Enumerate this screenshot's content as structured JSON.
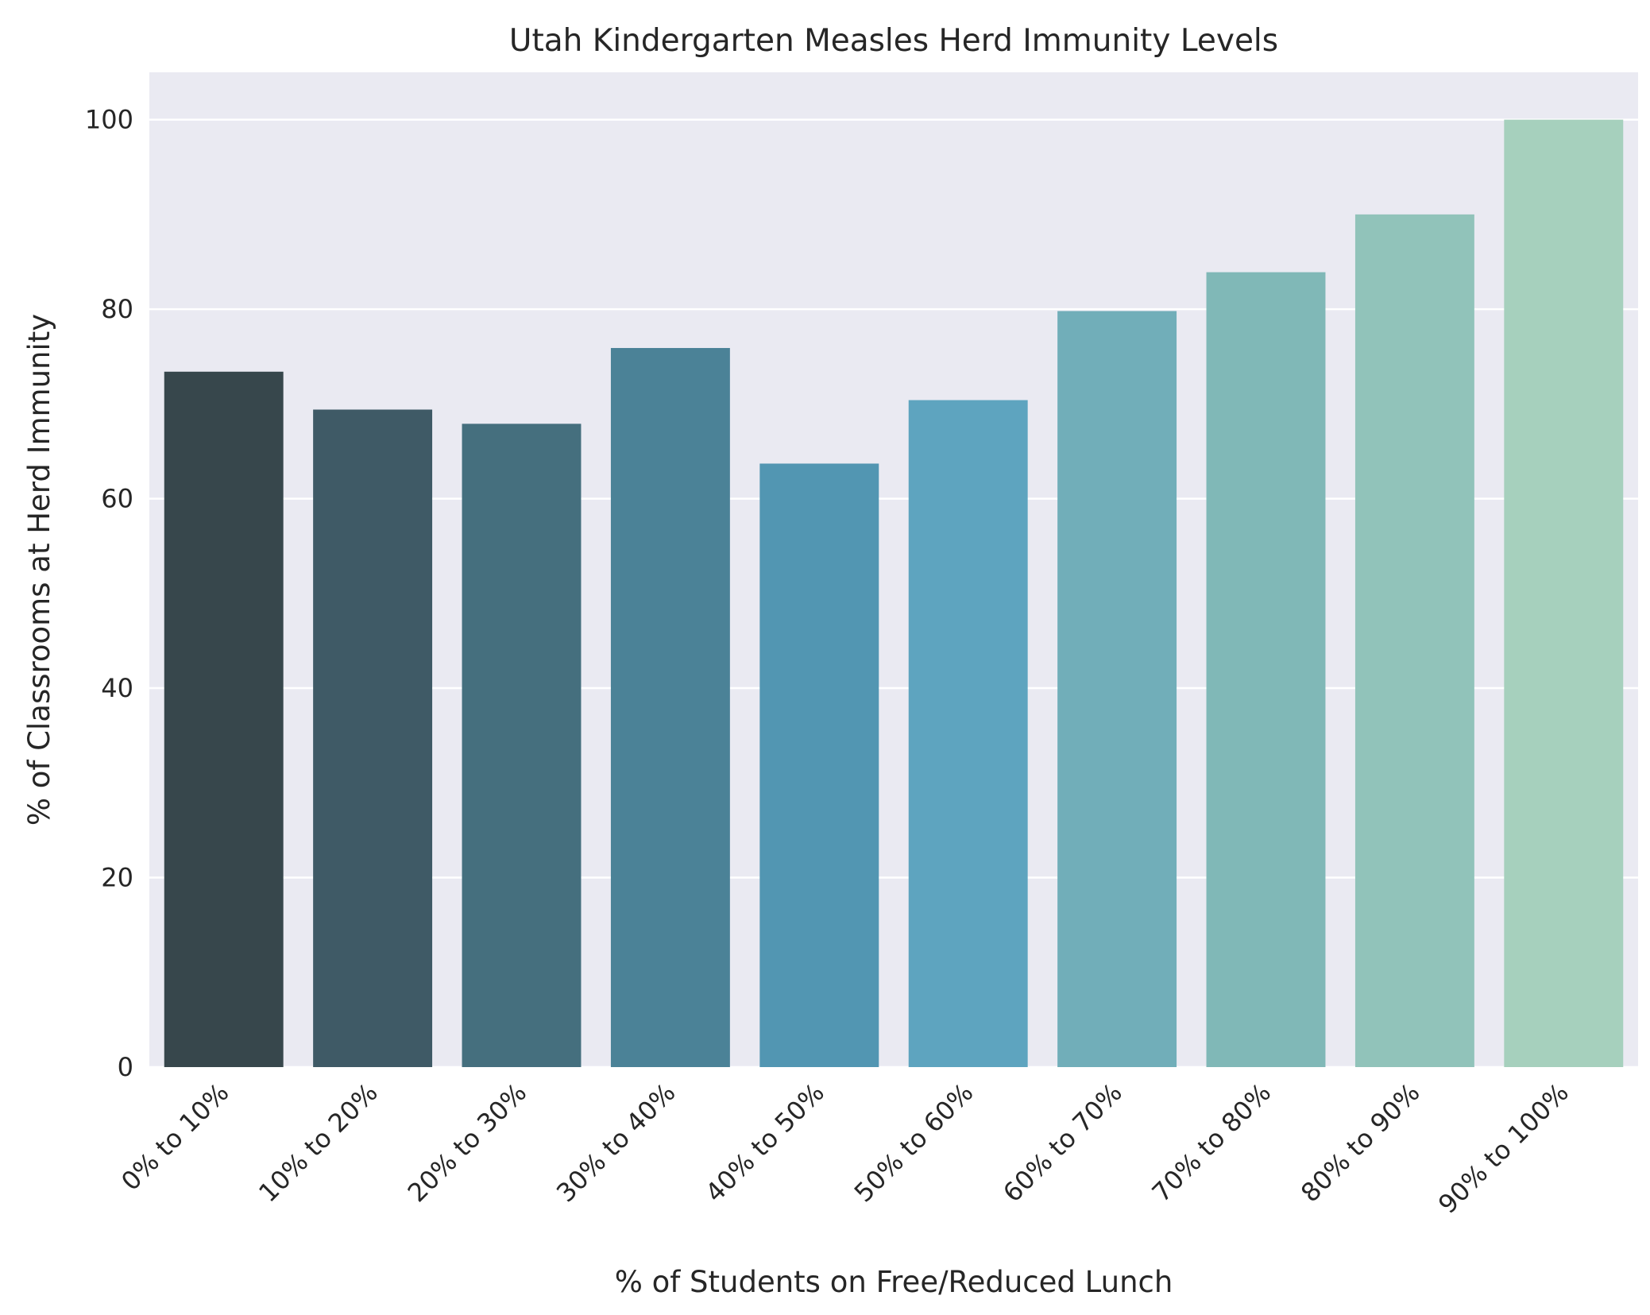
{
  "chart_data": {
    "type": "bar",
    "title": "Utah Kindergarten Measles Herd Immunity Levels",
    "xlabel": "% of Students on Free/Reduced Lunch",
    "ylabel": "% of Classrooms at Herd Immunity",
    "categories": [
      "0% to 10%",
      "10% to 20%",
      "20% to 30%",
      "30% to 40%",
      "40% to 50%",
      "50% to 60%",
      "60% to 70%",
      "70% to 80%",
      "80% to 90%",
      "90% to 100%"
    ],
    "values": [
      73.4,
      69.4,
      67.9,
      75.9,
      63.7,
      70.4,
      79.8,
      83.9,
      90.0,
      100.0
    ],
    "colors": [
      "#37474c",
      "#3f5a66",
      "#456f7e",
      "#4b8297",
      "#5296b2",
      "#5ea4bf",
      "#71aeb9",
      "#80b8b7",
      "#91c3ba",
      "#a6d0bd"
    ],
    "ylim": [
      0,
      105
    ],
    "yticks": [
      0,
      20,
      40,
      60,
      80,
      100
    ],
    "grid": true,
    "background": "#eaeaf2"
  }
}
